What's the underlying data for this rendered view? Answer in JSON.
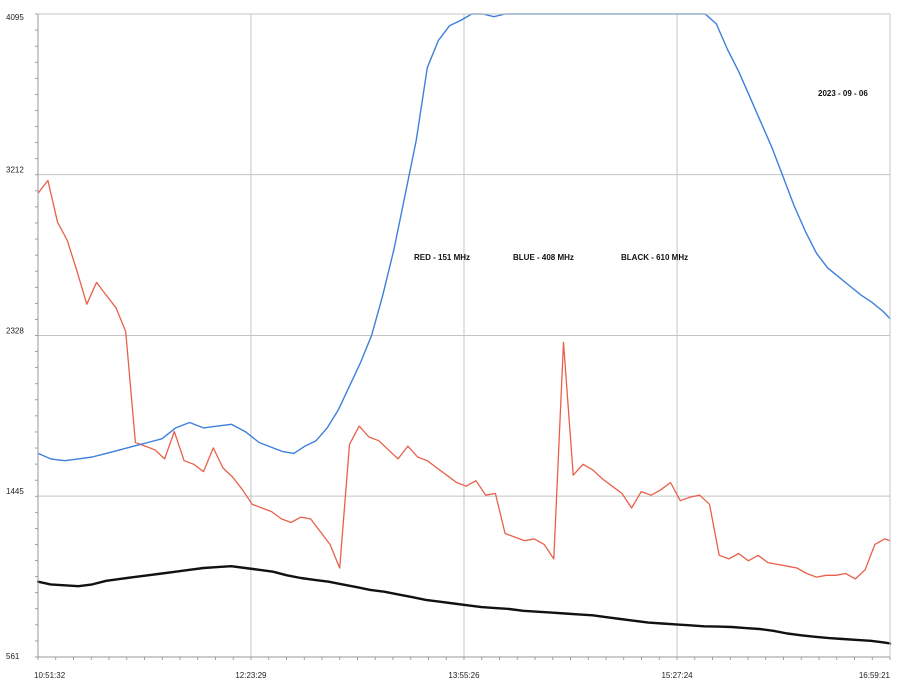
{
  "chart_data": {
    "type": "line",
    "title": "",
    "xlabel": "",
    "ylabel": "",
    "date_label": "2023 - 09 - 06",
    "annotations": [
      "RED - 151 MHz",
      "BLUE - 408 MHz",
      "BLACK - 610 MHz"
    ],
    "y_ticks": [
      "4095",
      "3212",
      "2328",
      "1445",
      "561"
    ],
    "y_tick_values": [
      4095,
      3212,
      2328,
      1445,
      561
    ],
    "x_ticks": [
      "10:51:32",
      "12:23:29",
      "13:55:26",
      "15:27:24",
      "16:59:21"
    ],
    "x_tick_hours": [
      10.859,
      12.391,
      13.924,
      15.457,
      16.989
    ],
    "xlim": [
      10.859,
      16.989
    ],
    "ylim": [
      561,
      4095
    ],
    "grid": true,
    "series": [
      {
        "name": "RED - 151 MHz",
        "color": "#e8604a",
        "x": [
          10.86,
          10.93,
          11.0,
          11.07,
          11.14,
          11.21,
          11.28,
          11.35,
          11.42,
          11.49,
          11.56,
          11.63,
          11.7,
          11.77,
          11.84,
          11.91,
          11.98,
          12.05,
          12.12,
          12.19,
          12.26,
          12.33,
          12.4,
          12.47,
          12.54,
          12.61,
          12.68,
          12.75,
          12.82,
          12.89,
          12.96,
          13.03,
          13.1,
          13.17,
          13.24,
          13.31,
          13.38,
          13.45,
          13.52,
          13.59,
          13.66,
          13.73,
          13.8,
          13.87,
          13.94,
          14.01,
          14.08,
          14.15,
          14.22,
          14.29,
          14.36,
          14.43,
          14.5,
          14.57,
          14.64,
          14.71,
          14.78,
          14.85,
          14.92,
          14.99,
          15.06,
          15.13,
          15.2,
          15.27,
          15.34,
          15.41,
          15.48,
          15.55,
          15.62,
          15.69,
          15.76,
          15.83,
          15.9,
          15.97,
          16.04,
          16.11,
          16.18,
          16.25,
          16.32,
          16.39,
          16.46,
          16.53,
          16.6,
          16.67,
          16.74,
          16.81,
          16.88,
          16.95,
          16.99
        ],
        "y": [
          3110,
          3180,
          2950,
          2850,
          2680,
          2500,
          2620,
          2550,
          2480,
          2350,
          1740,
          1720,
          1700,
          1650,
          1800,
          1640,
          1620,
          1580,
          1710,
          1600,
          1550,
          1480,
          1400,
          1380,
          1360,
          1320,
          1300,
          1330,
          1320,
          1250,
          1180,
          1050,
          1730,
          1830,
          1770,
          1750,
          1700,
          1650,
          1720,
          1660,
          1640,
          1600,
          1560,
          1520,
          1500,
          1530,
          1450,
          1460,
          1240,
          1220,
          1200,
          1210,
          1180,
          1100,
          2290,
          1560,
          1620,
          1590,
          1540,
          1500,
          1460,
          1380,
          1470,
          1450,
          1480,
          1520,
          1420,
          1440,
          1450,
          1400,
          1120,
          1100,
          1130,
          1090,
          1120,
          1080,
          1070,
          1060,
          1050,
          1020,
          1000,
          1010,
          1010,
          1020,
          990,
          1040,
          1180,
          1210,
          1200
        ]
      },
      {
        "name": "BLUE - 408 MHz",
        "color": "#3e7fdc",
        "x": [
          10.86,
          10.95,
          11.05,
          11.15,
          11.25,
          11.35,
          11.45,
          11.55,
          11.65,
          11.75,
          11.85,
          11.95,
          12.05,
          12.15,
          12.25,
          12.35,
          12.45,
          12.55,
          12.62,
          12.7,
          12.78,
          12.86,
          12.94,
          13.02,
          13.1,
          13.18,
          13.26,
          13.34,
          13.42,
          13.5,
          13.58,
          13.66,
          13.74,
          13.82,
          13.9,
          13.98,
          14.06,
          14.14,
          14.22,
          14.3,
          14.38,
          14.46,
          14.54,
          14.62,
          14.7,
          14.78,
          14.86,
          14.94,
          15.02,
          15.1,
          15.18,
          15.26,
          15.34,
          15.42,
          15.5,
          15.58,
          15.66,
          15.74,
          15.82,
          15.9,
          15.98,
          16.06,
          16.14,
          16.22,
          16.3,
          16.38,
          16.46,
          16.54,
          16.62,
          16.7,
          16.78,
          16.86,
          16.94,
          16.99
        ],
        "y": [
          1680,
          1650,
          1640,
          1650,
          1660,
          1680,
          1700,
          1720,
          1740,
          1760,
          1820,
          1850,
          1820,
          1830,
          1840,
          1800,
          1740,
          1710,
          1690,
          1680,
          1720,
          1750,
          1820,
          1920,
          2050,
          2180,
          2330,
          2550,
          2800,
          3100,
          3400,
          3800,
          3950,
          4030,
          4060,
          4095,
          4095,
          4080,
          4095,
          4095,
          4095,
          4095,
          4095,
          4095,
          4095,
          4095,
          4095,
          4095,
          4095,
          4095,
          4095,
          4095,
          4095,
          4095,
          4095,
          4095,
          4095,
          4040,
          3900,
          3780,
          3640,
          3500,
          3360,
          3200,
          3040,
          2900,
          2780,
          2700,
          2650,
          2600,
          2550,
          2510,
          2460,
          2420
        ]
      },
      {
        "name": "BLACK - 610 MHz",
        "color": "#111111",
        "x": [
          10.86,
          10.95,
          11.05,
          11.15,
          11.25,
          11.35,
          11.45,
          11.55,
          11.65,
          11.75,
          11.85,
          11.95,
          12.05,
          12.15,
          12.25,
          12.35,
          12.45,
          12.55,
          12.65,
          12.75,
          12.85,
          12.95,
          13.05,
          13.15,
          13.25,
          13.35,
          13.45,
          13.55,
          13.65,
          13.75,
          13.85,
          13.95,
          14.05,
          14.15,
          14.25,
          14.35,
          14.45,
          14.55,
          14.65,
          14.75,
          14.85,
          14.95,
          15.05,
          15.15,
          15.25,
          15.35,
          15.45,
          15.55,
          15.65,
          15.75,
          15.85,
          15.95,
          16.05,
          16.15,
          16.25,
          16.35,
          16.45,
          16.55,
          16.65,
          16.75,
          16.85,
          16.95,
          16.99
        ],
        "y": [
          975,
          960,
          955,
          950,
          960,
          980,
          990,
          1000,
          1010,
          1020,
          1030,
          1040,
          1050,
          1055,
          1060,
          1050,
          1040,
          1030,
          1010,
          995,
          985,
          975,
          960,
          945,
          930,
          920,
          905,
          890,
          875,
          865,
          855,
          845,
          835,
          830,
          825,
          815,
          810,
          805,
          800,
          795,
          790,
          780,
          770,
          760,
          750,
          745,
          740,
          735,
          730,
          728,
          726,
          720,
          715,
          705,
          690,
          680,
          672,
          665,
          660,
          655,
          650,
          640,
          635
        ]
      }
    ]
  }
}
